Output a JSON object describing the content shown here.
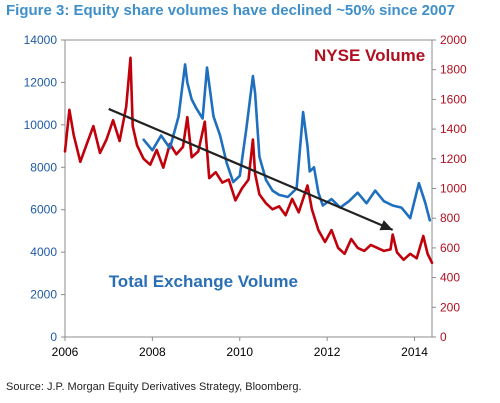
{
  "figure": {
    "title": "Figure 3: Equity share volumes have declined ~50% since 2007",
    "source": "Source: J.P. Morgan Equity Derivatives Strategy, Bloomberg."
  },
  "chart_data": {
    "type": "line",
    "title": "Figure 3: Equity share volumes have declined ~50% since 2007",
    "xlabel": "",
    "ylabel_left": "",
    "ylabel_right": "",
    "xlim": [
      2006,
      2014.4
    ],
    "x_ticks": [
      "2006",
      "2008",
      "2010",
      "2012",
      "2014"
    ],
    "ylim_left": [
      0,
      14000
    ],
    "y_ticks_left": [
      "0",
      "2000",
      "4000",
      "6000",
      "8000",
      "10000",
      "12000",
      "14000"
    ],
    "ylim_right": [
      0,
      2000
    ],
    "y_ticks_right": [
      "0",
      "200",
      "400",
      "600",
      "800",
      "1000",
      "1200",
      "1400",
      "1600",
      "1800",
      "2000"
    ],
    "grid": false,
    "legend": "none",
    "annotations": [
      {
        "text": "NYSE Volume",
        "color": "#b01020",
        "x": 2011.7,
        "y_right": 1860
      },
      {
        "text": "Total Exchange Volume",
        "color": "#2a6fb5",
        "x": 2007.0,
        "y_left": 2350
      }
    ],
    "trend_arrow": {
      "from": [
        2007.0,
        10750
      ],
      "to": [
        2013.5,
        5050
      ],
      "axis": "left",
      "color": "#222222"
    },
    "series": [
      {
        "name": "Total Exchange Volume",
        "axis": "left",
        "color": "#1f6fbf",
        "x": [
          2007.8,
          2008.0,
          2008.2,
          2008.4,
          2008.6,
          2008.75,
          2008.8,
          2008.9,
          2009.0,
          2009.15,
          2009.25,
          2009.4,
          2009.55,
          2009.7,
          2009.85,
          2010.0,
          2010.15,
          2010.3,
          2010.35,
          2010.45,
          2010.6,
          2010.75,
          2010.9,
          2011.1,
          2011.3,
          2011.45,
          2011.55,
          2011.6,
          2011.7,
          2011.8,
          2011.9,
          2012.1,
          2012.3,
          2012.5,
          2012.7,
          2012.9,
          2013.1,
          2013.3,
          2013.5,
          2013.7,
          2013.9,
          2014.1,
          2014.25,
          2014.35
        ],
        "values": [
          9300,
          8800,
          9500,
          8900,
          10400,
          12850,
          12000,
          11200,
          10800,
          10300,
          12700,
          10400,
          9500,
          8200,
          7300,
          7600,
          9800,
          12300,
          11500,
          8500,
          7400,
          6900,
          6700,
          6600,
          7000,
          10600,
          9000,
          7800,
          8000,
          6800,
          6200,
          6500,
          6100,
          6400,
          6800,
          6300,
          6900,
          6400,
          6200,
          6100,
          5600,
          7250,
          6300,
          5500
        ]
      },
      {
        "name": "NYSE Volume",
        "axis": "right",
        "color": "#c0000b",
        "x": [
          2006.0,
          2006.1,
          2006.2,
          2006.35,
          2006.5,
          2006.65,
          2006.8,
          2006.95,
          2007.1,
          2007.25,
          2007.4,
          2007.5,
          2007.55,
          2007.65,
          2007.8,
          2007.95,
          2008.1,
          2008.25,
          2008.4,
          2008.55,
          2008.7,
          2008.8,
          2008.9,
          2009.05,
          2009.2,
          2009.3,
          2009.45,
          2009.6,
          2009.75,
          2009.9,
          2010.05,
          2010.2,
          2010.3,
          2010.35,
          2010.45,
          2010.6,
          2010.75,
          2010.9,
          2011.05,
          2011.2,
          2011.35,
          2011.55,
          2011.65,
          2011.8,
          2011.95,
          2012.1,
          2012.25,
          2012.4,
          2012.55,
          2012.7,
          2012.85,
          2013.0,
          2013.15,
          2013.3,
          2013.45,
          2013.5,
          2013.6,
          2013.75,
          2013.9,
          2014.05,
          2014.2,
          2014.3,
          2014.4
        ],
        "values": [
          1250,
          1530,
          1360,
          1180,
          1300,
          1420,
          1240,
          1330,
          1460,
          1320,
          1550,
          1880,
          1420,
          1290,
          1200,
          1160,
          1260,
          1140,
          1300,
          1230,
          1280,
          1480,
          1210,
          1250,
          1450,
          1070,
          1110,
          1040,
          1060,
          920,
          1000,
          1060,
          1330,
          1100,
          960,
          900,
          860,
          880,
          820,
          930,
          840,
          1020,
          860,
          720,
          640,
          720,
          600,
          560,
          660,
          600,
          580,
          620,
          600,
          580,
          590,
          690,
          570,
          520,
          560,
          530,
          680,
          560,
          500
        ]
      }
    ]
  }
}
